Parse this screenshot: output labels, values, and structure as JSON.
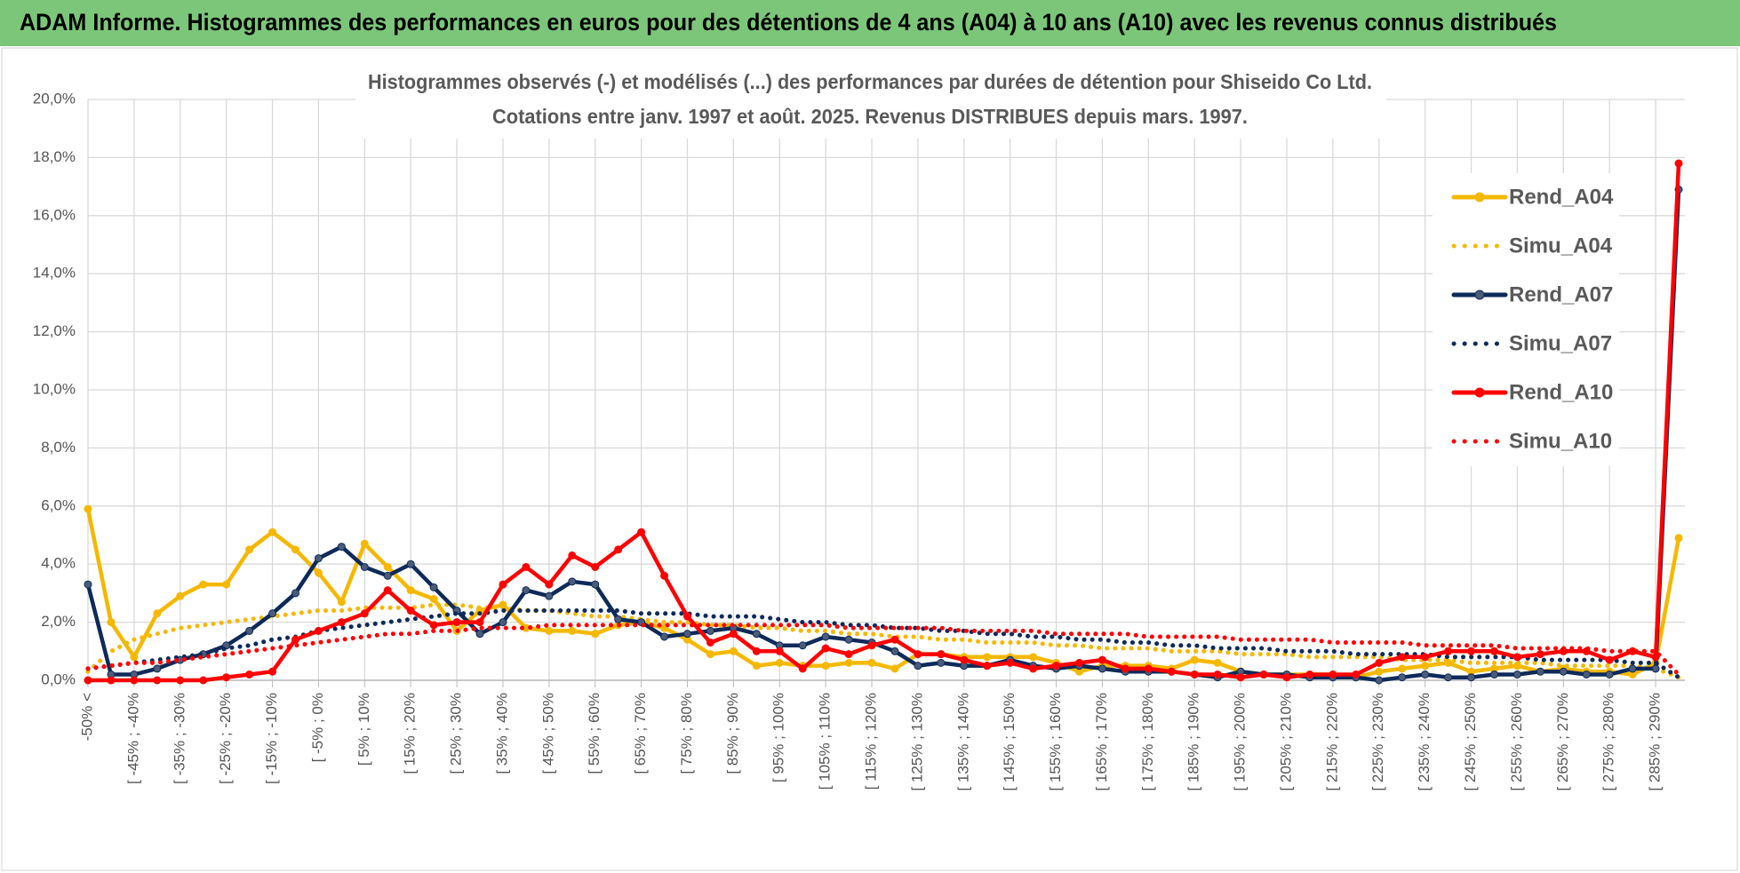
{
  "header": {
    "title": "ADAM Informe. Histogrammes des performances en euros pour des détentions de 4 ans (A04) à 10 ans (A10) avec les revenus connus distribués"
  },
  "chart_data": {
    "type": "line",
    "title": "Histogrammes observés (-) et modélisés (...) des performances par durées de détention pour Shiseido Co Ltd.",
    "subtitle": "Cotations entre janv. 1997 et août. 2025. Revenus DISTRIBUES depuis mars. 1997.",
    "categories": [
      "-50% <",
      null,
      "[ -45% ; -40%",
      null,
      "[ -35% ; -30%",
      null,
      "[ -25% ; -20%",
      null,
      "[ -15% ; -10%",
      null,
      "[ -5% ; 0%",
      null,
      "[ 5% ; 10%",
      null,
      "[ 15% ; 20%",
      null,
      "[ 25% ; 30%",
      null,
      "[ 35% ; 40%",
      null,
      "[ 45% ; 50%",
      null,
      "[ 55% ; 60%",
      null,
      "[ 65% ; 70%",
      null,
      "[ 75% ; 80%",
      null,
      "[ 85% ; 90%",
      null,
      "[ 95% ; 100%",
      null,
      "[ 105% ; 110%",
      null,
      "[ 115% ; 120%",
      null,
      "[ 125% ; 130%",
      null,
      "[ 135% ; 140%",
      null,
      "[ 145% ; 150%",
      null,
      "[ 155% ; 160%",
      null,
      "[ 165% ; 170%",
      null,
      "[ 175% ; 180%",
      null,
      "[ 185% ; 190%",
      null,
      "[ 195% ; 200%",
      null,
      "[ 205% ; 210%",
      null,
      "[ 215% ; 220%",
      null,
      "[ 225% ; 230%",
      null,
      "[ 235% ; 240%",
      null,
      "[ 245% ; 250%",
      null,
      "[ 255% ; 260%",
      null,
      "[ 265% ; 270%",
      null,
      "[ 275% ; 280%",
      null,
      "[ 285% ; 290%",
      null
    ],
    "series": [
      {
        "name": "Rend_A04",
        "color": "#f5b800",
        "style": "solid",
        "markers": true,
        "values": [
          5.9,
          2.0,
          0.8,
          2.3,
          2.9,
          3.3,
          3.3,
          4.5,
          5.1,
          4.5,
          3.7,
          2.7,
          4.7,
          3.9,
          3.1,
          2.8,
          1.7,
          2.4,
          2.6,
          1.8,
          1.7,
          1.7,
          1.6,
          1.9,
          2.0,
          1.8,
          1.4,
          0.9,
          1.0,
          0.5,
          0.6,
          0.5,
          0.5,
          0.6,
          0.6,
          0.4,
          0.9,
          0.9,
          0.8,
          0.8,
          0.8,
          0.8,
          0.6,
          0.3,
          0.5,
          0.5,
          0.5,
          0.4,
          0.7,
          0.6,
          0.3,
          0.2,
          0.2,
          0.2,
          0.2,
          0.1,
          0.3,
          0.4,
          0.5,
          0.6,
          0.3,
          0.4,
          0.5,
          0.3,
          0.4,
          0.3,
          0.3,
          0.2,
          0.6,
          4.9
        ]
      },
      {
        "name": "Simu_A04",
        "color": "#f5b800",
        "style": "dotted",
        "markers": false,
        "values": [
          0.3,
          1.0,
          1.4,
          1.6,
          1.8,
          1.9,
          2.0,
          2.1,
          2.2,
          2.3,
          2.4,
          2.4,
          2.5,
          2.5,
          2.5,
          2.6,
          2.6,
          2.5,
          2.5,
          2.4,
          2.4,
          2.3,
          2.2,
          2.2,
          2.1,
          2.0,
          2.0,
          1.9,
          1.9,
          1.8,
          1.8,
          1.7,
          1.7,
          1.6,
          1.6,
          1.5,
          1.5,
          1.4,
          1.4,
          1.3,
          1.3,
          1.3,
          1.2,
          1.2,
          1.1,
          1.1,
          1.1,
          1.0,
          1.0,
          1.0,
          0.9,
          0.9,
          0.9,
          0.8,
          0.8,
          0.8,
          0.8,
          0.7,
          0.7,
          0.7,
          0.6,
          0.6,
          0.6,
          0.6,
          0.5,
          0.5,
          0.5,
          0.5,
          0.4,
          0.1
        ]
      },
      {
        "name": "Rend_A07",
        "color": "#0e2a5a",
        "style": "solid",
        "markers": true,
        "values": [
          3.3,
          0.2,
          0.2,
          0.4,
          0.7,
          0.9,
          1.2,
          1.7,
          2.3,
          3.0,
          4.2,
          4.6,
          3.9,
          3.6,
          4.0,
          3.2,
          2.4,
          1.6,
          2.0,
          3.1,
          2.9,
          3.4,
          3.3,
          2.1,
          2.0,
          1.5,
          1.6,
          1.7,
          1.8,
          1.6,
          1.2,
          1.2,
          1.5,
          1.4,
          1.3,
          1.0,
          0.5,
          0.6,
          0.5,
          0.5,
          0.7,
          0.5,
          0.4,
          0.5,
          0.4,
          0.3,
          0.3,
          0.3,
          0.2,
          0.1,
          0.3,
          0.2,
          0.2,
          0.1,
          0.1,
          0.1,
          0.0,
          0.1,
          0.2,
          0.1,
          0.1,
          0.2,
          0.2,
          0.3,
          0.3,
          0.2,
          0.2,
          0.4,
          0.4,
          16.9
        ]
      },
      {
        "name": "Simu_A07",
        "color": "#0e2a5a",
        "style": "dotted",
        "markers": false,
        "values": [
          0.4,
          0.5,
          0.6,
          0.7,
          0.8,
          0.9,
          1.1,
          1.2,
          1.4,
          1.5,
          1.7,
          1.8,
          1.9,
          2.0,
          2.1,
          2.2,
          2.3,
          2.3,
          2.4,
          2.4,
          2.4,
          2.4,
          2.4,
          2.4,
          2.3,
          2.3,
          2.3,
          2.2,
          2.2,
          2.2,
          2.1,
          2.0,
          2.0,
          1.9,
          1.9,
          1.8,
          1.8,
          1.7,
          1.7,
          1.6,
          1.6,
          1.5,
          1.5,
          1.4,
          1.4,
          1.3,
          1.3,
          1.2,
          1.2,
          1.1,
          1.1,
          1.1,
          1.0,
          1.0,
          1.0,
          0.9,
          0.9,
          0.9,
          0.9,
          0.8,
          0.8,
          0.8,
          0.8,
          0.7,
          0.7,
          0.7,
          0.7,
          0.6,
          0.6,
          0.1
        ]
      },
      {
        "name": "Rend_A10",
        "color": "#ff0000",
        "style": "solid",
        "markers": true,
        "values": [
          0,
          0,
          0,
          0,
          0,
          0,
          0.1,
          0.2,
          0.3,
          1.4,
          1.7,
          2.0,
          2.3,
          3.1,
          2.4,
          1.9,
          2.0,
          2.0,
          3.3,
          3.9,
          3.3,
          4.3,
          3.9,
          4.5,
          5.1,
          3.6,
          2.2,
          1.3,
          1.6,
          1.0,
          1.0,
          0.4,
          1.1,
          0.9,
          1.2,
          1.4,
          0.9,
          0.9,
          0.7,
          0.5,
          0.6,
          0.4,
          0.5,
          0.6,
          0.7,
          0.4,
          0.4,
          0.3,
          0.2,
          0.2,
          0.1,
          0.2,
          0.1,
          0.2,
          0.2,
          0.2,
          0.6,
          0.8,
          0.8,
          1.0,
          1.0,
          1.0,
          0.8,
          0.9,
          1.0,
          1.0,
          0.7,
          1.0,
          0.8,
          17.8
        ]
      },
      {
        "name": "Simu_A10",
        "color": "#ff0000",
        "style": "dotted",
        "markers": false,
        "values": [
          0.4,
          0.5,
          0.6,
          0.6,
          0.7,
          0.8,
          0.9,
          1.0,
          1.1,
          1.2,
          1.3,
          1.4,
          1.5,
          1.6,
          1.6,
          1.7,
          1.7,
          1.8,
          1.8,
          1.8,
          1.9,
          1.9,
          1.9,
          1.9,
          1.9,
          1.9,
          1.9,
          1.9,
          1.9,
          1.9,
          1.9,
          1.9,
          1.9,
          1.8,
          1.8,
          1.8,
          1.8,
          1.8,
          1.7,
          1.7,
          1.7,
          1.7,
          1.6,
          1.6,
          1.6,
          1.6,
          1.5,
          1.5,
          1.5,
          1.5,
          1.4,
          1.4,
          1.4,
          1.4,
          1.3,
          1.3,
          1.3,
          1.3,
          1.2,
          1.2,
          1.2,
          1.2,
          1.1,
          1.1,
          1.1,
          1.1,
          1.0,
          1.0,
          1.0,
          0.2
        ]
      }
    ],
    "ylim": [
      0,
      20
    ],
    "yticks": [
      {
        "value": 0,
        "label": "0,0%"
      },
      {
        "value": 2,
        "label": "2,0%"
      },
      {
        "value": 4,
        "label": "4,0%"
      },
      {
        "value": 6,
        "label": "6,0%"
      },
      {
        "value": 8,
        "label": "8,0%"
      },
      {
        "value": 10,
        "label": "10,0%"
      },
      {
        "value": 12,
        "label": "12,0%"
      },
      {
        "value": 14,
        "label": "14,0%"
      },
      {
        "value": 16,
        "label": "16,0%"
      },
      {
        "value": 18,
        "label": "18,0%"
      },
      {
        "value": 20,
        "label": "20,0%"
      }
    ],
    "grid": true,
    "legend": "right"
  }
}
